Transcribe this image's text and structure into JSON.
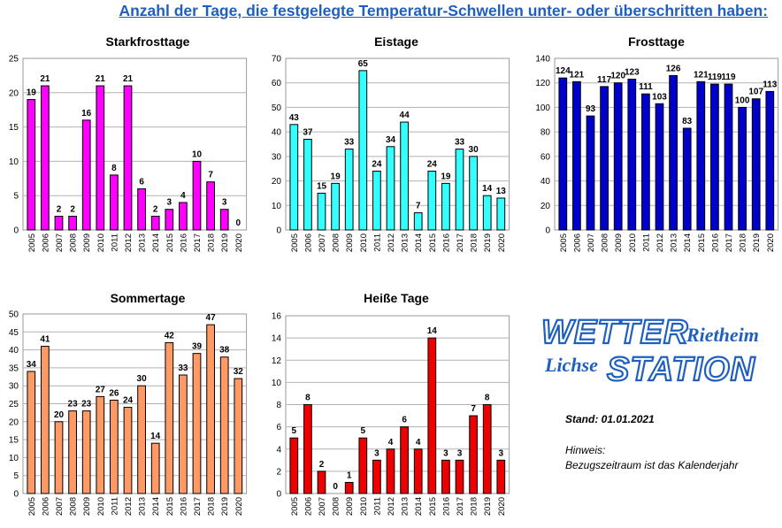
{
  "page": {
    "title": "Anzahl der Tage, die festgelegte Temperatur-Schwellen unter- oder überschritten haben:"
  },
  "logo": {
    "word_wetter": "WETTER",
    "word_station": "STATION",
    "place_rietheim": "Rietheim",
    "place_lichse": "Lichse",
    "primary_color": "#1f5fbf"
  },
  "info": {
    "stand": "Stand: 01.01.2021",
    "hinweis_label": "Hinweis:",
    "hinweis_text": "Bezugszeitraum ist das Kalenderjahr"
  },
  "chart_data": [
    {
      "type": "bar",
      "title": "Starkfrosttage",
      "categories": [
        "2005",
        "2006",
        "2007",
        "2008",
        "2009",
        "2010",
        "2011",
        "2012",
        "2013",
        "2014",
        "2015",
        "2016",
        "2017",
        "2018",
        "2019",
        "2020"
      ],
      "values": [
        19,
        21,
        2,
        2,
        16,
        21,
        8,
        21,
        6,
        2,
        3,
        4,
        10,
        7,
        3,
        0
      ],
      "ylim": [
        0,
        25
      ],
      "yticks": [
        0,
        5,
        10,
        15,
        20,
        25
      ],
      "grid": true,
      "color": "#ff00ff"
    },
    {
      "type": "bar",
      "title": "Eistage",
      "categories": [
        "2005",
        "2006",
        "2007",
        "2008",
        "2009",
        "2010",
        "2011",
        "2012",
        "2013",
        "2014",
        "2015",
        "2016",
        "2017",
        "2018",
        "2019",
        "2020"
      ],
      "values": [
        43,
        37,
        15,
        19,
        33,
        65,
        24,
        34,
        44,
        7,
        24,
        19,
        33,
        30,
        14,
        13
      ],
      "ylim": [
        0,
        70
      ],
      "yticks": [
        0,
        10,
        20,
        30,
        40,
        50,
        60,
        70
      ],
      "grid": true,
      "color": "#33ffff"
    },
    {
      "type": "bar",
      "title": "Frosttage",
      "categories": [
        "2005",
        "2006",
        "2007",
        "2008",
        "2009",
        "2010",
        "2011",
        "2012",
        "2013",
        "2014",
        "2015",
        "2016",
        "2017",
        "2018",
        "2019",
        "2020"
      ],
      "values": [
        124,
        121,
        93,
        117,
        120,
        123,
        111,
        103,
        126,
        83,
        121,
        119,
        119,
        100,
        107,
        113
      ],
      "ylim": [
        0,
        140
      ],
      "yticks": [
        0,
        20,
        40,
        60,
        80,
        100,
        120,
        140
      ],
      "grid": true,
      "color": "#0000cc"
    },
    {
      "type": "bar",
      "title": "Sommertage",
      "categories": [
        "2005",
        "2006",
        "2007",
        "2008",
        "2009",
        "2010",
        "2011",
        "2012",
        "2013",
        "2014",
        "2015",
        "2016",
        "2017",
        "2018",
        "2019",
        "2020"
      ],
      "values": [
        34,
        41,
        20,
        23,
        23,
        27,
        26,
        24,
        30,
        14,
        42,
        33,
        39,
        47,
        38,
        32
      ],
      "ylim": [
        0,
        50
      ],
      "yticks": [
        0,
        5,
        10,
        15,
        20,
        25,
        30,
        35,
        40,
        45,
        50
      ],
      "grid": true,
      "color": "#ff9966"
    },
    {
      "type": "bar",
      "title": "Heiße Tage",
      "categories": [
        "2005",
        "2006",
        "2007",
        "2008",
        "2009",
        "2010",
        "2011",
        "2012",
        "2013",
        "2014",
        "2015",
        "2016",
        "2017",
        "2018",
        "2019",
        "2020"
      ],
      "values": [
        5,
        8,
        2,
        0,
        1,
        5,
        3,
        4,
        6,
        4,
        14,
        3,
        3,
        7,
        8,
        3
      ],
      "ylim": [
        0,
        16
      ],
      "yticks": [
        0,
        2,
        4,
        6,
        8,
        10,
        12,
        14,
        16
      ],
      "grid": true,
      "color": "#ee0000"
    }
  ]
}
